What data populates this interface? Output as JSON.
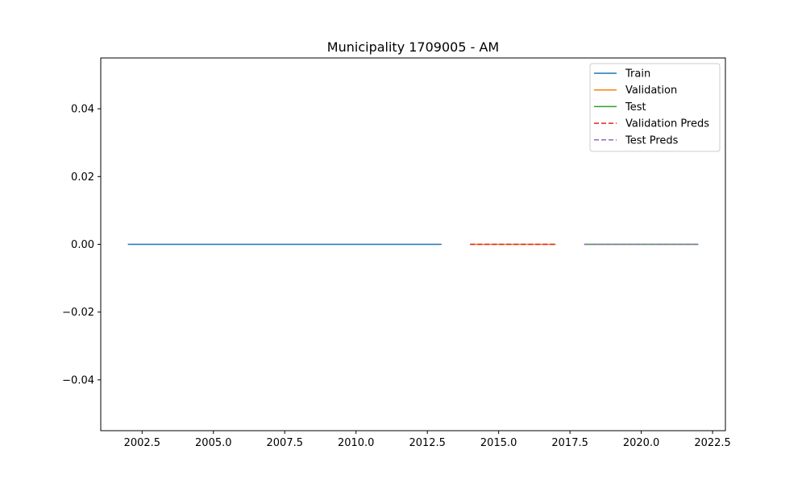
{
  "chart_data": {
    "type": "line",
    "title": "Municipality 1709005 - AM",
    "xlabel": "",
    "ylabel": "",
    "xlim": [
      2001.05,
      2022.95
    ],
    "ylim": [
      -0.055,
      0.055
    ],
    "x_ticks": [
      2002.5,
      2005.0,
      2007.5,
      2010.0,
      2012.5,
      2015.0,
      2017.5,
      2020.0,
      2022.5
    ],
    "x_tick_labels": [
      "2002.5",
      "2005.0",
      "2007.5",
      "2010.0",
      "2012.5",
      "2015.0",
      "2017.5",
      "2020.0",
      "2022.5"
    ],
    "y_ticks": [
      -0.04,
      -0.02,
      0.0,
      0.02,
      0.04
    ],
    "y_tick_labels": [
      "−0.04",
      "−0.02",
      "0.00",
      "0.02",
      "0.04"
    ],
    "grid": false,
    "legend_position": "top-right",
    "series": [
      {
        "name": "Train",
        "color": "#1f77b4",
        "dash": "solid",
        "x": [
          2002,
          2003,
          2004,
          2005,
          2006,
          2007,
          2008,
          2009,
          2010,
          2011,
          2012,
          2013
        ],
        "y": [
          0,
          0,
          0,
          0,
          0,
          0,
          0,
          0,
          0,
          0,
          0,
          0
        ]
      },
      {
        "name": "Validation",
        "color": "#ff7f0e",
        "dash": "solid",
        "x": [
          2014,
          2015,
          2016,
          2017
        ],
        "y": [
          0,
          0,
          0,
          0
        ]
      },
      {
        "name": "Test",
        "color": "#2ca02c",
        "dash": "solid",
        "x": [
          2018,
          2019,
          2020,
          2021,
          2022
        ],
        "y": [
          0,
          0,
          0,
          0,
          0
        ]
      },
      {
        "name": "Validation Preds",
        "color": "#d62728",
        "dash": "dashed",
        "x": [
          2014,
          2015,
          2016,
          2017
        ],
        "y": [
          0,
          0,
          0,
          0
        ]
      },
      {
        "name": "Test Preds",
        "color": "#9467bd",
        "dash": "dashed",
        "x": [
          2018,
          2019,
          2020,
          2021,
          2022
        ],
        "y": [
          0,
          0,
          0,
          0,
          0
        ]
      }
    ]
  }
}
